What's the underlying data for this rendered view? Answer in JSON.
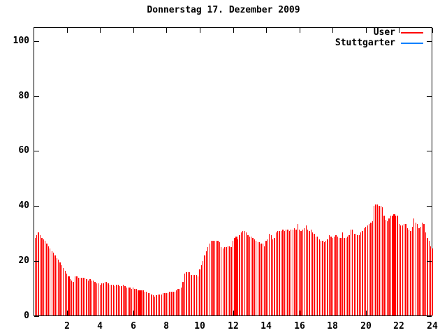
{
  "title": "Donnerstag 17. Dezember 2009",
  "legend": [
    {
      "label": "User",
      "color": "#ff0000"
    },
    {
      "label": "Stuttgarter",
      "color": "#0080ff"
    }
  ],
  "colors": {
    "background": "#ffffff",
    "axis_and_text": "#000000",
    "user_series": "#ff0000",
    "stuttgarter_series": "#0080ff"
  },
  "chart_data": {
    "type": "bar",
    "bar_style": "impulses",
    "title": "Donnerstag 17. Dezember 2009",
    "xlabel": "",
    "ylabel": "",
    "xlim": [
      0,
      24
    ],
    "ylim": [
      0,
      105
    ],
    "xticks": [
      2,
      4,
      6,
      8,
      10,
      12,
      14,
      16,
      18,
      20,
      22,
      24
    ],
    "yticks": [
      0,
      20,
      40,
      60,
      80,
      100
    ],
    "grid": false,
    "legend_position": "top-right-inside",
    "x_unit": "hour-of-day",
    "x_start_hours": 0.1,
    "x_step_hours": 0.1,
    "wide_bars_at_hours": [
      2.1,
      6.4,
      12.2,
      21.7
    ],
    "series": [
      {
        "name": "User",
        "color": "#ff0000",
        "values": [
          28.5,
          29.5,
          30.5,
          29.5,
          28.5,
          28,
          27.5,
          26.5,
          25.5,
          24.5,
          23.5,
          23,
          22,
          21,
          20.5,
          19.5,
          18.5,
          17.5,
          16.5,
          15.5,
          14.5,
          13.5,
          13,
          12.5,
          14.5,
          14.5,
          14,
          14,
          14,
          14,
          14,
          13.5,
          13,
          13.5,
          13,
          13,
          12.5,
          12,
          12,
          11.5,
          12,
          12,
          12.5,
          12.5,
          12,
          11.5,
          11.5,
          11.5,
          11,
          11.5,
          11.5,
          11,
          11,
          11.5,
          11,
          10.5,
          10.5,
          10.5,
          10,
          10.5,
          10,
          10,
          9.5,
          9.5,
          9.5,
          9.5,
          9,
          9,
          8.5,
          8.5,
          8,
          7.5,
          7,
          7.5,
          8,
          8,
          8,
          8.5,
          8.5,
          8.5,
          8.5,
          9,
          9,
          9,
          9,
          9.5,
          10,
          10,
          10.5,
          12.5,
          15.5,
          16,
          16,
          16,
          15,
          15,
          15,
          15,
          14.5,
          17,
          18.5,
          20,
          22,
          23.5,
          25,
          26.5,
          27.5,
          27.5,
          27.5,
          27.5,
          27.5,
          27,
          25,
          24.5,
          25,
          25,
          25.5,
          25.5,
          25,
          27.5,
          28.5,
          29,
          28,
          29.5,
          30.5,
          31,
          31,
          30.5,
          29.5,
          29,
          29,
          28.5,
          28,
          27.5,
          27,
          27,
          26.5,
          26.5,
          25.5,
          27.5,
          28,
          30,
          29.5,
          28,
          28.5,
          30.5,
          31,
          31,
          31,
          31.5,
          31,
          31.5,
          31.5,
          31,
          31.5,
          31.5,
          32,
          31.5,
          33.5,
          31.5,
          31,
          31.5,
          32,
          33,
          31.5,
          31,
          31.5,
          30.5,
          30,
          29,
          29,
          28,
          27.5,
          27.5,
          27,
          27.5,
          28,
          29.5,
          29,
          28.5,
          29,
          29.5,
          29,
          28.5,
          28.5,
          30.5,
          28.5,
          28.5,
          29,
          29.5,
          31.5,
          31.5,
          30,
          30,
          29.5,
          29.5,
          30.5,
          31,
          32,
          32.5,
          33,
          33.5,
          34,
          34.5,
          40,
          40.5,
          40.5,
          40,
          40,
          39.5,
          36.5,
          35,
          34.5,
          35.5,
          36.5,
          36.5,
          37,
          36.5,
          36.5,
          33.5,
          33,
          33,
          33.5,
          33.5,
          32,
          31.5,
          31,
          32.5,
          35.5,
          34,
          33.5,
          32,
          32.5,
          34,
          33.5,
          30.5,
          28.5,
          27.5,
          25.5,
          24.5
        ]
      },
      {
        "name": "Stuttgarter",
        "color": "#0080ff",
        "visible_in_plot": false,
        "values": []
      }
    ]
  }
}
